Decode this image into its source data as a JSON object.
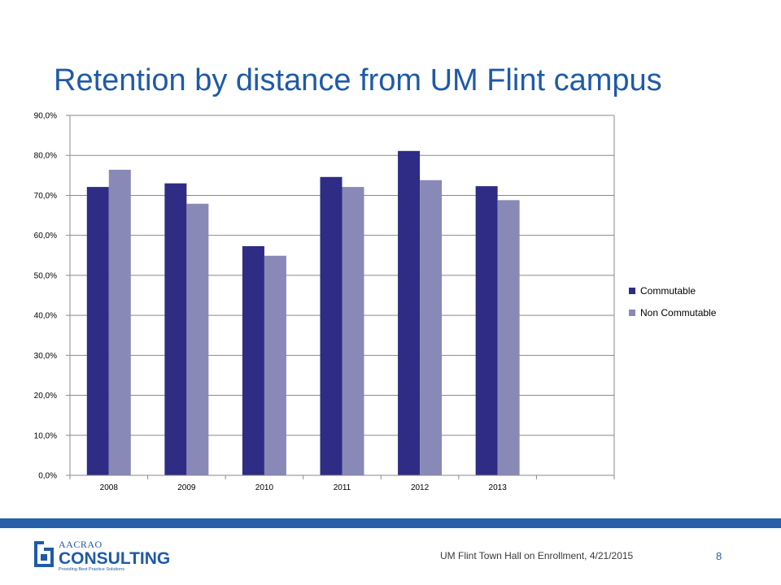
{
  "slide": {
    "title": "Retention by distance from UM Flint campus",
    "footer_text": "UM Flint Town Hall on Enrollment, 4/21/2015",
    "page_number": "8"
  },
  "logo": {
    "name": "AACRAO",
    "brand": "CONSULTING",
    "tagline": "Providing Best Practice Solutions",
    "color": "#1f5aa6"
  },
  "colors": {
    "accent": "#2760a9",
    "title": "#1f5aa6"
  },
  "chart_data": {
    "type": "bar",
    "title": "",
    "xlabel": "",
    "ylabel": "",
    "categories": [
      "2008",
      "2009",
      "2010",
      "2011",
      "2012",
      "2013",
      ""
    ],
    "series": [
      {
        "name": "Commutable",
        "color": "#2e2c84",
        "values": [
          72.1,
          73.0,
          57.3,
          74.6,
          81.1,
          72.3,
          null
        ]
      },
      {
        "name": "Non Commutable",
        "color": "#8989b8",
        "values": [
          76.4,
          67.9,
          54.9,
          72.1,
          73.8,
          68.8,
          null
        ]
      }
    ],
    "ylim": [
      0,
      90
    ],
    "ytick_labels": [
      "0,0%",
      "10,0%",
      "20,0%",
      "30,0%",
      "40,0%",
      "50,0%",
      "60,0%",
      "70,0%",
      "80,0%",
      "90,0%"
    ],
    "grid": true,
    "legend_position": "right"
  }
}
